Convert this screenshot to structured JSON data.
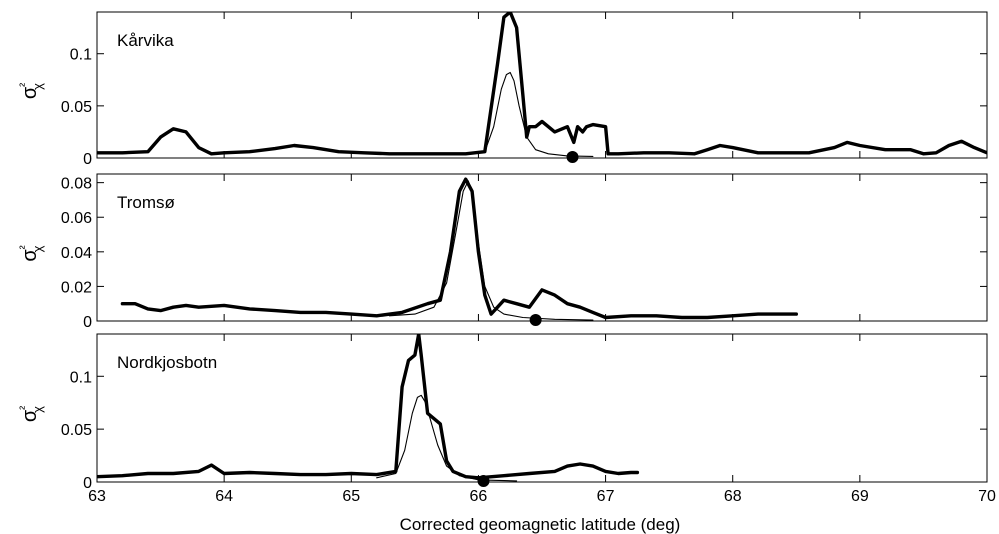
{
  "chart_data": {
    "type": "line",
    "xlabel": "Corrected geomagnetic latitude (deg)",
    "xlim": [
      63,
      70
    ],
    "xticks": [
      63,
      64,
      65,
      66,
      67,
      68,
      69,
      70
    ],
    "ylabel": "σ²χ",
    "panels": [
      {
        "station": "Kårvika",
        "ylim": [
          0,
          0.14
        ],
        "yticks": [
          0,
          0.05,
          0.1
        ],
        "ytick_labels": [
          "0",
          "0.05",
          "0.1"
        ],
        "marker_x": 66.74,
        "series": [
          {
            "style": "thick",
            "x": [
              63.0,
              63.2,
              63.4,
              63.5,
              63.6,
              63.7,
              63.8,
              63.9,
              64.0,
              64.2,
              64.4,
              64.55,
              64.7,
              64.9,
              65.1,
              65.3,
              65.5,
              65.7,
              65.9,
              66.05,
              66.15,
              66.2,
              66.25,
              66.3,
              66.35,
              66.38,
              66.4,
              66.45,
              66.5,
              66.6,
              66.7,
              66.75,
              66.78,
              66.82,
              66.85,
              66.9,
              67.0,
              67.02,
              67.1,
              67.3,
              67.5,
              67.7,
              67.8,
              67.9,
              68.0,
              68.2,
              68.4,
              68.6,
              68.8,
              68.9,
              69.0,
              69.2,
              69.4,
              69.5,
              69.6,
              69.7,
              69.8,
              69.9,
              70.0
            ],
            "y": [
              0.005,
              0.005,
              0.006,
              0.02,
              0.028,
              0.025,
              0.01,
              0.004,
              0.005,
              0.006,
              0.009,
              0.012,
              0.01,
              0.006,
              0.005,
              0.004,
              0.004,
              0.004,
              0.004,
              0.006,
              0.09,
              0.135,
              0.14,
              0.125,
              0.06,
              0.02,
              0.03,
              0.03,
              0.035,
              0.025,
              0.03,
              0.015,
              0.03,
              0.025,
              0.03,
              0.032,
              0.03,
              0.004,
              0.004,
              0.005,
              0.005,
              0.004,
              0.008,
              0.012,
              0.01,
              0.005,
              0.005,
              0.005,
              0.01,
              0.015,
              0.012,
              0.008,
              0.008,
              0.004,
              0.005,
              0.012,
              0.016,
              0.01,
              0.005
            ]
          },
          {
            "style": "thin",
            "x": [
              65.7,
              65.9,
              66.05,
              66.12,
              66.18,
              66.22,
              66.25,
              66.28,
              66.32,
              66.38,
              66.45,
              66.55,
              66.7,
              66.9
            ],
            "y": [
              0.004,
              0.004,
              0.006,
              0.03,
              0.066,
              0.08,
              0.082,
              0.074,
              0.05,
              0.02,
              0.008,
              0.004,
              0.002,
              0.0015
            ]
          }
        ]
      },
      {
        "station": "Tromsø",
        "ylim": [
          0,
          0.085
        ],
        "yticks": [
          0,
          0.02,
          0.04,
          0.06,
          0.08
        ],
        "ytick_labels": [
          "0",
          "0.02",
          "0.04",
          "0.06",
          "0.08"
        ],
        "marker_x": 66.45,
        "series": [
          {
            "style": "thick",
            "x": [
              63.2,
              63.3,
              63.4,
              63.5,
              63.6,
              63.7,
              63.8,
              64.0,
              64.2,
              64.4,
              64.6,
              64.8,
              65.0,
              65.2,
              65.4,
              65.6,
              65.7,
              65.78,
              65.85,
              65.9,
              65.95,
              66.0,
              66.05,
              66.1,
              66.15,
              66.2,
              66.3,
              66.4,
              66.5,
              66.6,
              66.7,
              66.8,
              66.9,
              67.0,
              67.2,
              67.4,
              67.6,
              67.8,
              68.0,
              68.2,
              68.4,
              68.5
            ],
            "y": [
              0.01,
              0.01,
              0.007,
              0.006,
              0.008,
              0.009,
              0.008,
              0.009,
              0.007,
              0.006,
              0.005,
              0.005,
              0.004,
              0.003,
              0.005,
              0.01,
              0.012,
              0.04,
              0.075,
              0.082,
              0.075,
              0.04,
              0.015,
              0.004,
              0.008,
              0.012,
              0.01,
              0.008,
              0.018,
              0.015,
              0.01,
              0.008,
              0.005,
              0.002,
              0.003,
              0.003,
              0.002,
              0.002,
              0.003,
              0.004,
              0.004,
              0.004
            ]
          },
          {
            "style": "thin",
            "x": [
              65.3,
              65.5,
              65.65,
              65.75,
              65.82,
              65.88,
              65.92,
              65.96,
              66.0,
              66.05,
              66.12,
              66.2,
              66.35,
              66.6,
              66.9
            ],
            "y": [
              0.003,
              0.004,
              0.008,
              0.022,
              0.05,
              0.075,
              0.081,
              0.072,
              0.045,
              0.02,
              0.008,
              0.004,
              0.002,
              0.001,
              0.0005
            ]
          }
        ]
      },
      {
        "station": "Nordkjosbotn",
        "ylim": [
          0,
          0.14
        ],
        "yticks": [
          0,
          0.05,
          0.1
        ],
        "ytick_labels": [
          "0",
          "0.05",
          "0.1"
        ],
        "marker_x": 66.04,
        "series": [
          {
            "style": "thick",
            "x": [
              63.0,
              63.2,
              63.4,
              63.6,
              63.8,
              63.9,
              64.0,
              64.2,
              64.4,
              64.6,
              64.8,
              65.0,
              65.2,
              65.35,
              65.4,
              65.45,
              65.5,
              65.53,
              65.55,
              65.6,
              65.65,
              65.7,
              65.75,
              65.8,
              65.9,
              66.0,
              66.2,
              66.4,
              66.6,
              66.7,
              66.8,
              66.9,
              67.0,
              67.1,
              67.2,
              67.25
            ],
            "y": [
              0.005,
              0.006,
              0.008,
              0.008,
              0.01,
              0.016,
              0.008,
              0.009,
              0.008,
              0.007,
              0.007,
              0.008,
              0.007,
              0.01,
              0.09,
              0.115,
              0.12,
              0.14,
              0.12,
              0.065,
              0.06,
              0.055,
              0.02,
              0.01,
              0.005,
              0.004,
              0.006,
              0.008,
              0.01,
              0.015,
              0.017,
              0.015,
              0.01,
              0.008,
              0.009,
              0.009
            ]
          },
          {
            "style": "thin",
            "x": [
              65.2,
              65.35,
              65.42,
              65.48,
              65.52,
              65.55,
              65.58,
              65.62,
              65.68,
              65.75,
              65.85,
              66.0,
              66.3
            ],
            "y": [
              0.004,
              0.008,
              0.03,
              0.065,
              0.08,
              0.082,
              0.076,
              0.06,
              0.035,
              0.015,
              0.006,
              0.002,
              0.001
            ]
          }
        ]
      }
    ]
  }
}
